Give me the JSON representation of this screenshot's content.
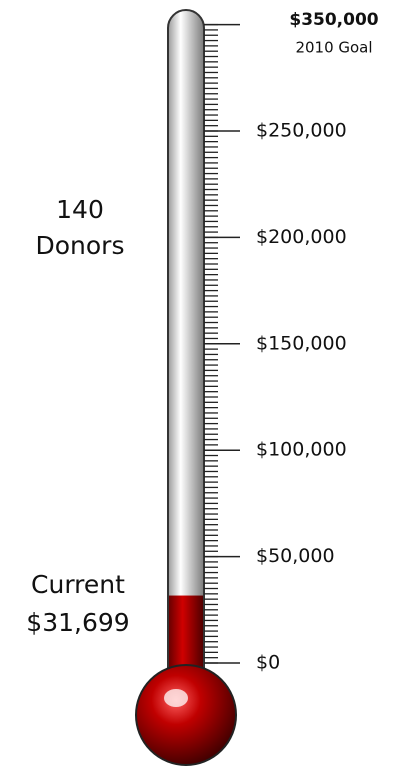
{
  "chart_data": {
    "type": "thermometer",
    "value": 31699,
    "value_label": "$31,699",
    "value_caption": "Current",
    "donors": 140,
    "donors_label": "Donors",
    "goal": {
      "value": 350000,
      "label": "$350,000",
      "note": "2010 Goal"
    },
    "ylim": [
      0,
      300000
    ],
    "yticks": [
      {
        "value": 0,
        "label": "$0"
      },
      {
        "value": 50000,
        "label": "$50,000"
      },
      {
        "value": 100000,
        "label": "$100,000"
      },
      {
        "value": 150000,
        "label": "$150,000"
      },
      {
        "value": 200000,
        "label": "$200,000"
      },
      {
        "value": 250000,
        "label": "$250,000"
      }
    ],
    "minor_step": 2500,
    "color": "#b00000"
  }
}
